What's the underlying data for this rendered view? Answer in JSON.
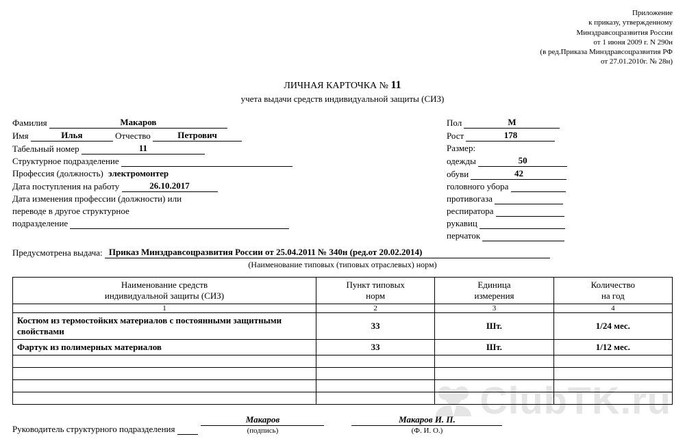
{
  "attachment": {
    "l1": "Приложение",
    "l2": "к приказу, утвержденному",
    "l3": "Минздравсоцразвития России",
    "l4": "от 1 июня 2009 г. N 290н",
    "l5": "(в ред.Приказа Минздравсоцразвития РФ",
    "l6": "от 27.01.2010г. № 28н)"
  },
  "title": {
    "prefix": "ЛИЧНАЯ КАРТОЧКА №",
    "number": "11",
    "subtitle": "учета выдачи средств индивидуальной защиты (СИЗ)"
  },
  "left": {
    "surname_label": "Фамилия",
    "surname": "Макаров",
    "name_label": "Имя",
    "name": "Илья",
    "patronymic_label": "Отчество",
    "patronymic": "Петрович",
    "tabno_label": "Табельный номер",
    "tabno": "11",
    "unit_label": "Структурное подразделение",
    "unit": "",
    "profession_label": "Профессия (должность)",
    "profession": "электромонтер",
    "hire_date_label": "Дата поступления на работу",
    "hire_date": "26.10.2017",
    "change_label1": "Дата изменения профессии (должности) или",
    "change_label2": "переводе в другое структурное",
    "change_label3": "подразделение",
    "change_value": ""
  },
  "right": {
    "sex_label": "Пол",
    "sex": "М",
    "height_label": "Рост",
    "height": "178",
    "size_caption": "Размер:",
    "clothes_label": "одежды",
    "clothes": "50",
    "shoes_label": "обуви",
    "shoes": "42",
    "headwear_label": "головного убора",
    "headwear": "",
    "gasmask_label": "противогаза",
    "gasmask": "",
    "respirator_label": "респиратора",
    "respirator": "",
    "mittens_label": "рукавиц",
    "mittens": "",
    "gloves_label": "перчаток",
    "gloves": ""
  },
  "issuance": {
    "label": "Предусмотрена выдача:",
    "value": "Приказ Минздравсоцразвития России от 25.04.2011 № 340н (ред.от 20.02.2014)",
    "caption": "(Наименование типовых (типовых отраслевых) норм)"
  },
  "table": {
    "headers": {
      "c1a": "Наименование средств",
      "c1b": "индивидуальной защиты (СИЗ)",
      "c2a": "Пункт типовых",
      "c2b": "норм",
      "c3a": "Единица",
      "c3b": "измерения",
      "c4a": "Количество",
      "c4b": "на год"
    },
    "colnums": [
      "1",
      "2",
      "3",
      "4"
    ],
    "rows": [
      {
        "name": "Костюм из термостойких материалов с постоянными защитными свойствами",
        "point": "33",
        "unit": "Шт.",
        "qty": "1/24 мес."
      },
      {
        "name": "Фартук из полимерных материалов",
        "point": "33",
        "unit": "Шт.",
        "qty": "1/12 мес."
      },
      {
        "name": "",
        "point": "",
        "unit": "",
        "qty": ""
      },
      {
        "name": "",
        "point": "",
        "unit": "",
        "qty": ""
      },
      {
        "name": "",
        "point": "",
        "unit": "",
        "qty": ""
      },
      {
        "name": "",
        "point": "",
        "unit": "",
        "qty": ""
      }
    ]
  },
  "signature": {
    "role": "Руководитель структурного подразделения",
    "sign": "Макаров",
    "sign_caption": "(подпись)",
    "fio": "Макаров И. П.",
    "fio_caption": "(Ф. И. О.)"
  },
  "watermark": "ClubTK.ru",
  "colors": {
    "text": "#000000",
    "background": "#ffffff",
    "watermark": "#e5e5e5",
    "border": "#000000"
  }
}
